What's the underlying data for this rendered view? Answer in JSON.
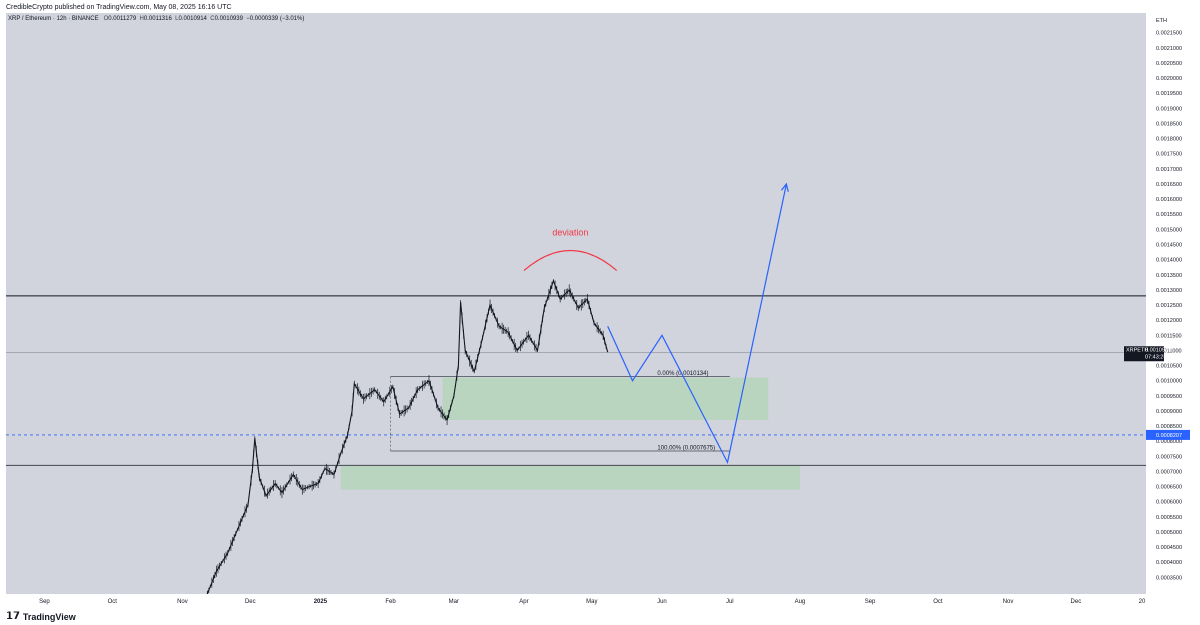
{
  "publisher": "CredibleCrypto published on TradingView.com, May 08, 2025 16:16 UTC",
  "footer": {
    "brand": "TradingView"
  },
  "chart_data": {
    "type": "candlestick",
    "symbol_line": "XRP / Ethereum · 12h · BINANCE",
    "ohlc": {
      "o_label": "O",
      "o": "0.0011279",
      "h_label": "H",
      "h": "0.0011316",
      "l_label": "L",
      "l": "0.0010914",
      "c_label": "C",
      "c": "0.0010939",
      "change": "−0.0000339 (−3.01%)"
    },
    "currency": "ETH",
    "ylim": [
      0.000295,
      0.002215
    ],
    "y_ticks": [
      "0.0021500",
      "0.0021000",
      "0.0020500",
      "0.0020000",
      "0.0019500",
      "0.0019000",
      "0.0018500",
      "0.0018000",
      "0.0017500",
      "0.0017000",
      "0.0016500",
      "0.0016000",
      "0.0015500",
      "0.0015000",
      "0.0014500",
      "0.0014000",
      "0.0013500",
      "0.0013000",
      "0.0012500",
      "0.0012000",
      "0.0011500",
      "0.0011000",
      "0.0010500",
      "0.0010000",
      "0.0009500",
      "0.0009000",
      "0.0008500",
      "0.0008000",
      "0.0007500",
      "0.0007000",
      "0.0006500",
      "0.0006000",
      "0.0005500",
      "0.0005000",
      "0.0004500",
      "0.0004000",
      "0.0003500",
      "0.0003000"
    ],
    "x_ticks": [
      "Sep",
      "Oct",
      "Nov",
      "Dec",
      "2025",
      "Feb",
      "Mar",
      "Apr",
      "May",
      "Jun",
      "Jul",
      "Aug",
      "Sep",
      "Oct",
      "Nov",
      "Dec",
      "20"
    ],
    "price_series": [
      [
        "2024-11-12",
        0.000295
      ],
      [
        "2024-11-16",
        0.00037
      ],
      [
        "2024-11-21",
        0.00043
      ],
      [
        "2024-11-26",
        0.00052
      ],
      [
        "2024-11-30",
        0.00059
      ],
      [
        "2024-12-02",
        0.00071
      ],
      [
        "2024-12-03",
        0.00081
      ],
      [
        "2024-12-05",
        0.00068
      ],
      [
        "2024-12-08",
        0.00062
      ],
      [
        "2024-12-12",
        0.00066
      ],
      [
        "2024-12-15",
        0.00063
      ],
      [
        "2024-12-20",
        0.00069
      ],
      [
        "2024-12-24",
        0.00064
      ],
      [
        "2024-12-27",
        0.00065
      ],
      [
        "2024-12-31",
        0.00066
      ],
      [
        "2025-01-03",
        0.00071
      ],
      [
        "2025-01-07",
        0.00069
      ],
      [
        "2025-01-10",
        0.00076
      ],
      [
        "2025-01-13",
        0.00082
      ],
      [
        "2025-01-15",
        0.0009
      ],
      [
        "2025-01-16",
        0.00099
      ],
      [
        "2025-01-20",
        0.00094
      ],
      [
        "2025-01-25",
        0.00097
      ],
      [
        "2025-01-29",
        0.00093
      ],
      [
        "2025-02-02",
        0.00098
      ],
      [
        "2025-02-05",
        0.00089
      ],
      [
        "2025-02-09",
        0.00091
      ],
      [
        "2025-02-13",
        0.00097
      ],
      [
        "2025-02-18",
        0.001
      ],
      [
        "2025-02-22",
        0.00091
      ],
      [
        "2025-02-26",
        0.00087
      ],
      [
        "2025-03-01",
        0.00095
      ],
      [
        "2025-03-03",
        0.00105
      ],
      [
        "2025-03-04",
        0.00126
      ],
      [
        "2025-03-06",
        0.0011
      ],
      [
        "2025-03-10",
        0.00103
      ],
      [
        "2025-03-13",
        0.00112
      ],
      [
        "2025-03-17",
        0.00125
      ],
      [
        "2025-03-21",
        0.00118
      ],
      [
        "2025-03-25",
        0.00116
      ],
      [
        "2025-03-29",
        0.0011
      ],
      [
        "2025-04-03",
        0.00115
      ],
      [
        "2025-04-07",
        0.0011
      ],
      [
        "2025-04-10",
        0.00124
      ],
      [
        "2025-04-14",
        0.00133
      ],
      [
        "2025-04-17",
        0.00127
      ],
      [
        "2025-04-21",
        0.0013
      ],
      [
        "2025-04-25",
        0.00124
      ],
      [
        "2025-04-29",
        0.00127
      ],
      [
        "2025-05-02",
        0.00119
      ],
      [
        "2025-05-06",
        0.00115
      ],
      [
        "2025-05-08",
        0.0010939
      ]
    ],
    "horizontal_lines": [
      {
        "price": 0.00128,
        "color": "#131722",
        "style": "solid"
      },
      {
        "price": 0.00072,
        "color": "#434651",
        "style": "solid"
      },
      {
        "price": 0.0008207,
        "color": "#2962ff",
        "style": "dashed"
      }
    ],
    "zones": [
      {
        "from_date": "2025-02-24",
        "to_date": "2025-07-18",
        "top": 0.00101,
        "bottom": 0.00087,
        "color": "#a5d6a7"
      },
      {
        "from_date": "2025-01-10",
        "to_date": "2025-08-01",
        "top": 0.00072,
        "bottom": 0.00064,
        "color": "#a5d6a7"
      }
    ],
    "fib": {
      "from_date": "2025-02-01",
      "to_date": "2025-07-01",
      "levels": [
        {
          "price": 0.0010134,
          "label": "0.00% (0.0010134)"
        },
        {
          "price": 0.0007675,
          "label": "100.00% (0.0007675)"
        }
      ]
    },
    "projection": [
      [
        "2025-05-08",
        0.00118
      ],
      [
        "2025-05-19",
        0.001
      ],
      [
        "2025-06-01",
        0.00115
      ],
      [
        "2025-06-30",
        0.00073
      ],
      [
        "2025-07-26",
        0.00165
      ]
    ],
    "deviation": {
      "label": "deviation",
      "from_date": "2025-04-01",
      "to_date": "2025-05-12",
      "price": 0.00143
    },
    "last_price": {
      "symbol": "XRPETH",
      "value": "0.0010939",
      "countdown": "07:43:25"
    },
    "marked_price": "0.0008207",
    "colors": {
      "background": "#d1d4dc",
      "candles": "#131722",
      "projection": "#2962ff",
      "deviation": "#f23645",
      "price_badge": "#131722",
      "dashed_badge": "#2962ff"
    }
  }
}
